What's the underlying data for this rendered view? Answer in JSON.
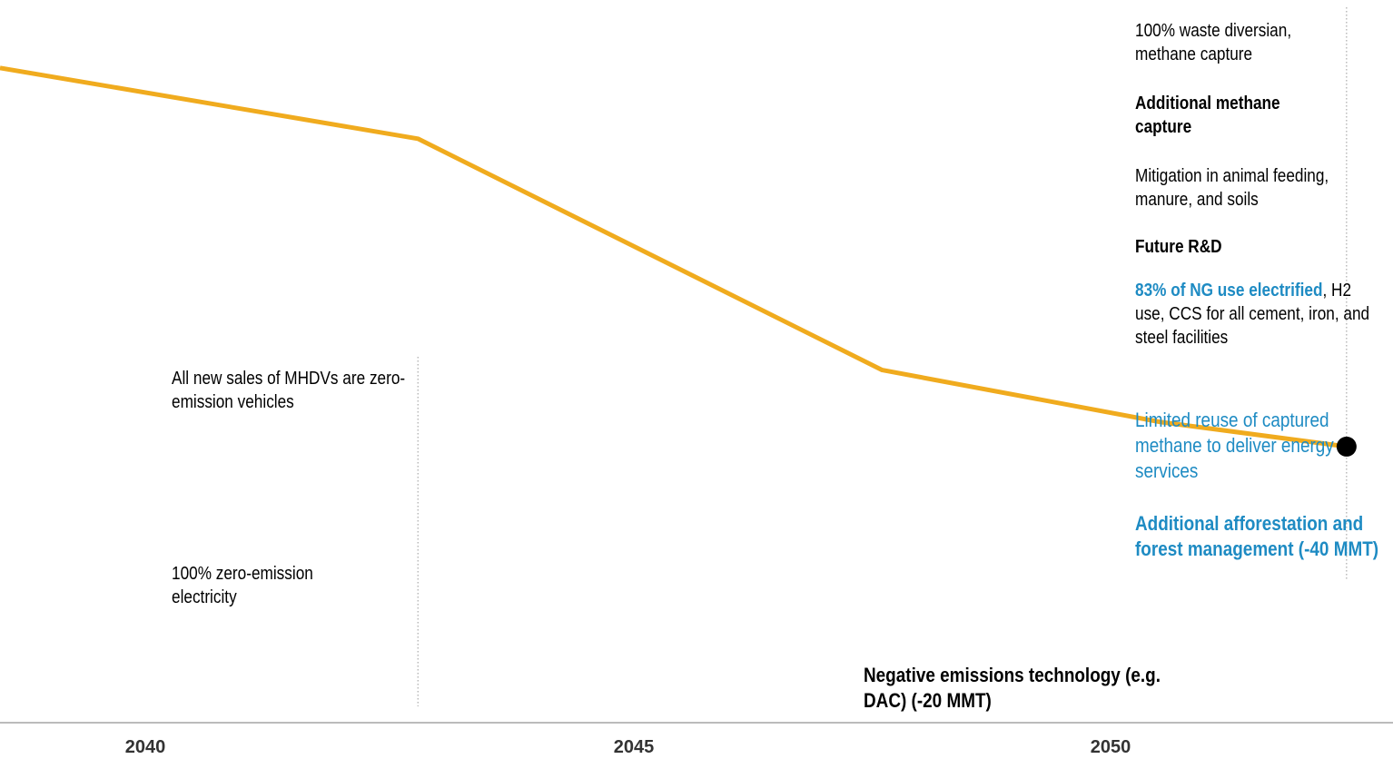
{
  "chart_data": {
    "type": "line",
    "title": "",
    "xlabel": "",
    "ylabel": "",
    "x_ticks": [
      "2040",
      "2045",
      "2050"
    ],
    "series": [
      {
        "color": "#f0ab1e",
        "points": [
          {
            "x": 2035.5,
            "y": 453
          },
          {
            "x": 2040,
            "y": 404
          },
          {
            "x": 2045,
            "y": 244
          },
          {
            "x": 2048,
            "y": 208
          },
          {
            "x": 2050,
            "y": 191
          }
        ]
      }
    ],
    "y_range": [
      0,
      500
    ],
    "x_range": [
      2035.5,
      2050.5
    ],
    "endpoint_marker": {
      "x": 2050,
      "color": "#000000"
    }
  },
  "annotations": {
    "mhdv": "All new sales of MHDVs are zero-emission vehicles",
    "electricity": "100% zero-emission electricity",
    "waste": "100% waste diversian, methane capture",
    "methane": "Additional methane capture",
    "animal": "Mitigation in animal feeding, manure, and soils",
    "rnd": "Future R&D",
    "ng_bold": "83% of NG use electrified",
    "ng_rest": ", H2 use, CCS for all cement, iron, and steel facilities",
    "captured": "Limited reuse of captured methane to deliver energy services",
    "afforestation": "Additional afforestation and forest management (-40 MMT)",
    "negative": "Negative emissions technology (e.g. DAC) (-20 MMT)"
  },
  "colors": {
    "line": "#f0ab1e",
    "accent_blue": "#1e8bc3",
    "axis": "#bbbbbb",
    "guide": "#999999"
  }
}
